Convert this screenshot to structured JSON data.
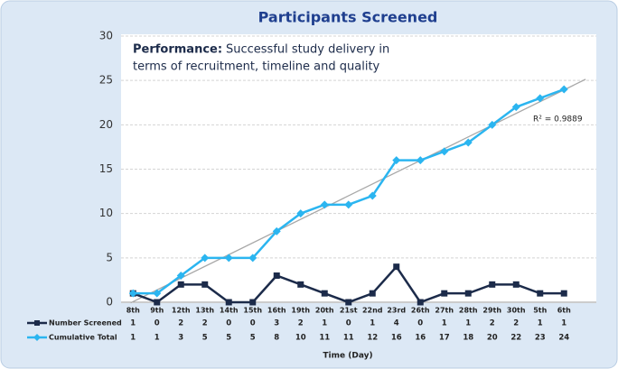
{
  "chart_data": {
    "type": "line",
    "title": "Participants Screened",
    "x_label": "Time (Day)",
    "annotation": {
      "label": "Performance:",
      "lines": [
        "Successful study delivery in",
        "terms of recruitment, timeline and quality"
      ]
    },
    "trendline_label": "R² = 0.9889",
    "categories": [
      "8th",
      "9th",
      "12th",
      "13th",
      "14th",
      "15th",
      "16th",
      "19th",
      "20th",
      "21st",
      "22nd",
      "23rd",
      "26th",
      "27th",
      "28th",
      "29th",
      "30th",
      "5th",
      "6th"
    ],
    "series": [
      {
        "name": "Number Screened",
        "color": "#1c2b4a",
        "marker": "square",
        "values": [
          1,
          0,
          2,
          2,
          0,
          0,
          3,
          2,
          1,
          0,
          1,
          4,
          0,
          1,
          1,
          2,
          2,
          1,
          1
        ]
      },
      {
        "name": "Cumulative Total",
        "color": "#2bb5f0",
        "marker": "diamond",
        "trendline": true,
        "values": [
          1,
          1,
          3,
          5,
          5,
          5,
          8,
          10,
          11,
          11,
          12,
          16,
          16,
          17,
          18,
          20,
          22,
          23,
          24
        ]
      }
    ],
    "ylim": [
      0,
      30
    ],
    "yticks": [
      0,
      5,
      10,
      15,
      20,
      25,
      30
    ],
    "grid": true,
    "data_table": true
  }
}
